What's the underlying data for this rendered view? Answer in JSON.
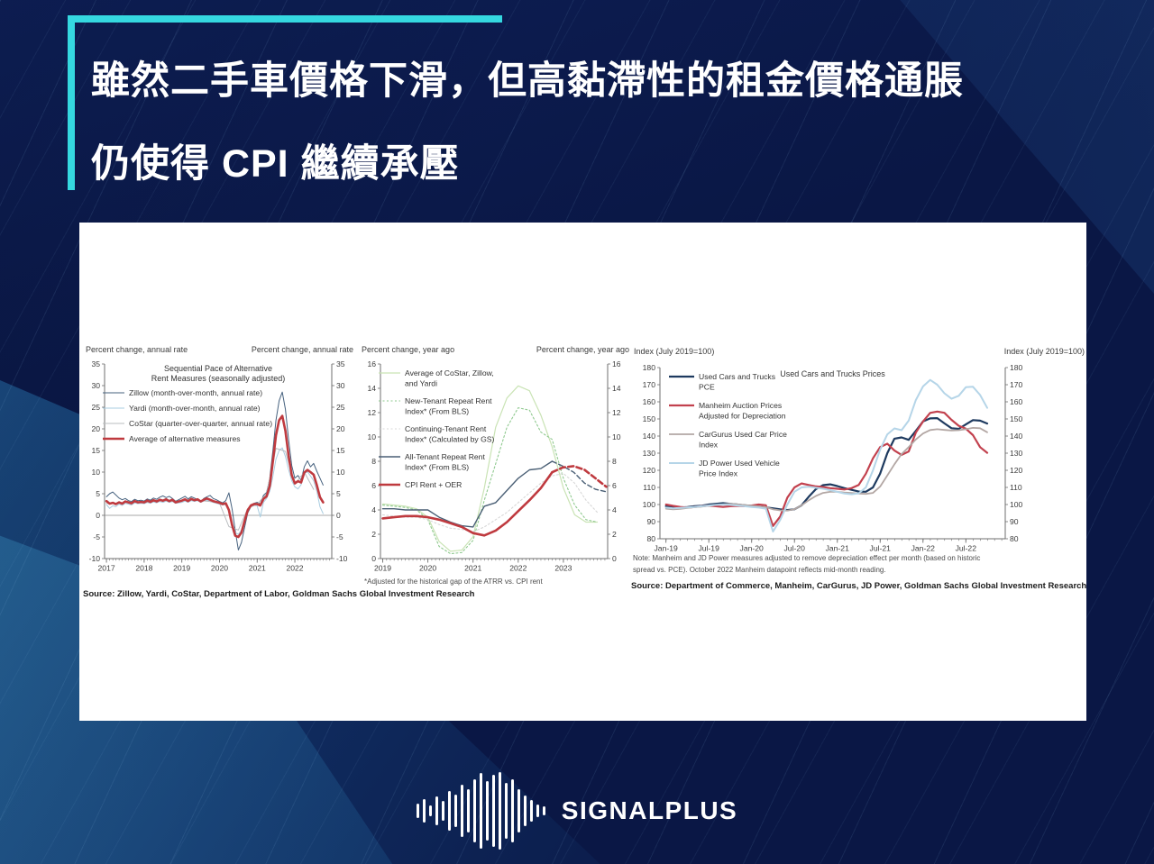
{
  "slide": {
    "title_line1": "雖然二手車價格下滑，但高黏滯性的租金價格通脹",
    "title_line2": "仍使得 CPI 繼續承壓",
    "accent_color": "#35d8e0",
    "background_color": "#0a1745"
  },
  "panel": {
    "left_source": "Source: Zillow, Yardi, CoStar, Department of Labor, Goldman Sachs Global Investment Research",
    "middle_footnote": "*Adjusted for the historical gap of the ATRR  vs.  CPI rent",
    "right_note_line1": "Note:  Manheim  and JD  Power measures  adjusted to remove  depreciation  effect per month (based on historic",
    "right_note_line2": "spread vs. PCE).  October 2022 Manheim  datapoint reflects mid-month reading.",
    "right_source": "Source: Department of Commerce, Manheim, CarGurus, JD Power, Goldman Sachs Global Investment Research"
  },
  "logo": {
    "brand": "SIGNALPLUS",
    "icon": "waveform-icon"
  },
  "chart_data": [
    {
      "type": "line",
      "title_lines": [
        "Sequential Pace of Alternative",
        "Rent Measures (seasonally adjusted)"
      ],
      "left_axis_label": "Percent change, annual rate",
      "right_axis_label": "Percent change, annual rate",
      "xlim": [
        2016.95,
        2022.98
      ],
      "ylim": [
        -10,
        35
      ],
      "yticks": [
        -10,
        -5,
        0,
        5,
        10,
        15,
        20,
        25,
        30,
        35
      ],
      "xticks": [
        {
          "v": 2017,
          "label": "2017"
        },
        {
          "v": 2018,
          "label": "2018"
        },
        {
          "v": 2019,
          "label": "2019"
        },
        {
          "v": 2020,
          "label": "2020"
        },
        {
          "v": 2021,
          "label": "2021"
        },
        {
          "v": 2022,
          "label": "2022"
        }
      ],
      "minor_step": 0.08333,
      "zero_line": true,
      "grid": false,
      "legend_position": "upper-left",
      "series": [
        {
          "name_lines": [
            "Zillow (month-over-month, annual rate)"
          ],
          "color": "#46617e",
          "width": 1,
          "dash": "",
          "x0": 2017.0,
          "dx": 0.08333,
          "values": [
            4.3,
            5.0,
            5.4,
            4.7,
            4.0,
            3.6,
            3.9,
            3.4,
            3.2,
            3.7,
            3.4,
            3.5,
            3.3,
            3.8,
            3.5,
            4.0,
            3.7,
            4.2,
            4.5,
            4.1,
            4.4,
            3.9,
            3.3,
            3.6,
            4.0,
            4.4,
            3.8,
            4.3,
            4.0,
            3.6,
            3.1,
            3.9,
            4.3,
            4.6,
            3.9,
            3.6,
            3.2,
            2.9,
            3.4,
            5.2,
            1.5,
            -3.5,
            -8.0,
            -6.3,
            -2.8,
            0.6,
            2.0,
            2.8,
            3.0,
            2.6,
            4.6,
            5.3,
            8.5,
            15.0,
            22.0,
            26.5,
            28.5,
            24.5,
            17.5,
            11.5,
            8.6,
            9.2,
            8.1,
            11.2,
            12.6,
            11.2,
            12.0,
            10.2,
            8.6,
            7.0
          ]
        },
        {
          "name_lines": [
            "Yardi (month-over-month, annual rate)"
          ],
          "color": "#a8cce0",
          "width": 1,
          "dash": "",
          "x0": 2017.0,
          "dx": 0.08333,
          "values": [
            2.5,
            1.6,
            2.2,
            2.0,
            2.6,
            2.3,
            2.8,
            2.6,
            2.4,
            2.9,
            2.7,
            2.8,
            2.7,
            3.0,
            2.8,
            3.1,
            2.9,
            3.2,
            3.0,
            3.3,
            3.0,
            3.2,
            2.8,
            2.9,
            3.0,
            3.3,
            3.0,
            3.4,
            3.2,
            3.4,
            3.0,
            3.3,
            3.5,
            3.2,
            3.0,
            2.8,
            2.6,
            2.4,
            2.5,
            1.0,
            -1.8,
            -4.0,
            -4.4,
            -3.4,
            -1.0,
            1.0,
            2.0,
            2.3,
            2.2,
            -0.4,
            3.0,
            3.9,
            5.6,
            9.0,
            13.0,
            15.0,
            15.6,
            13.6,
            10.6,
            8.0,
            6.6,
            6.1,
            7.1,
            9.6,
            10.1,
            9.1,
            8.0,
            5.6,
            2.0,
            0.4
          ]
        },
        {
          "name_lines": [
            "CoStar (quarter-over-quarter, annual rate)"
          ],
          "color": "#b9bcbf",
          "width": 1,
          "dash": "",
          "x0": 2017.0,
          "dx": 0.25,
          "values": [
            2.8,
            2.7,
            3.0,
            3.1,
            3.0,
            3.3,
            3.4,
            3.2,
            3.4,
            3.6,
            3.4,
            3.2,
            2.8,
            -2.6,
            -3.4,
            1.6,
            2.6,
            5.0,
            15.5,
            14.8,
            7.2,
            10.0,
            6.0
          ]
        },
        {
          "name_lines": [
            "Average of alternative measures"
          ],
          "color": "#bf3a3f",
          "width": 2.6,
          "dash": "",
          "x0": 2017.0,
          "dx": 0.08333,
          "values": [
            3.3,
            2.7,
            2.9,
            2.6,
            3.0,
            2.7,
            3.2,
            3.0,
            2.8,
            3.3,
            3.0,
            3.1,
            3.0,
            3.4,
            3.1,
            3.5,
            3.2,
            3.6,
            3.4,
            3.7,
            3.3,
            3.6,
            3.0,
            3.2,
            3.4,
            3.7,
            3.3,
            3.8,
            3.5,
            3.7,
            3.2,
            3.6,
            3.9,
            3.6,
            3.3,
            3.1,
            2.9,
            2.6,
            2.8,
            1.2,
            -2.2,
            -4.7,
            -5.0,
            -4.0,
            -1.3,
            1.2,
            2.3,
            2.6,
            2.6,
            2.3,
            3.8,
            4.4,
            6.8,
            12.5,
            18.5,
            22.0,
            23.0,
            19.5,
            13.8,
            9.3,
            7.4,
            7.9,
            7.6,
            9.9,
            10.5,
            10.0,
            9.4,
            7.0,
            4.2,
            3.0
          ]
        }
      ]
    },
    {
      "type": "line",
      "title_lines": [],
      "left_axis_label": "Percent change, year ago",
      "right_axis_label": "Percent change, year ago",
      "xlim": [
        2018.95,
        2023.98
      ],
      "ylim": [
        0,
        16
      ],
      "yticks": [
        0,
        2,
        4,
        6,
        8,
        10,
        12,
        14,
        16
      ],
      "xticks": [
        {
          "v": 2019,
          "label": "2019"
        },
        {
          "v": 2020,
          "label": "2020"
        },
        {
          "v": 2021,
          "label": "2021"
        },
        {
          "v": 2022,
          "label": "2022"
        },
        {
          "v": 2023,
          "label": "2023"
        }
      ],
      "minor_step": 0.08333,
      "zero_line": false,
      "grid": false,
      "legend_position": "upper-left",
      "series": [
        {
          "name_lines": [
            "Average of CoStar, Zillow,",
            "and Yardi"
          ],
          "color": "#c9e3b4",
          "width": 1.2,
          "dash": "",
          "x0": 2019.0,
          "dx": 0.25,
          "values": [
            4.5,
            4.4,
            4.3,
            4.1,
            3.4,
            1.4,
            0.6,
            0.7,
            1.8,
            5.8,
            10.8,
            13.2,
            14.2,
            13.8,
            11.8,
            9.2,
            5.8,
            3.6,
            3.0,
            3.0
          ]
        },
        {
          "name_lines": [
            "New-Tenant Repeat Rent",
            "Index* (From BLS)"
          ],
          "color": "#8fc98f",
          "width": 1.1,
          "dash": "2,2.5",
          "x0": 2019.0,
          "dx": 0.25,
          "values": [
            4.4,
            4.3,
            4.2,
            4.0,
            3.2,
            1.0,
            0.4,
            0.5,
            1.5,
            4.8,
            7.8,
            10.8,
            12.4,
            12.2,
            10.4,
            9.8,
            6.6,
            4.4,
            3.2,
            3.0
          ]
        },
        {
          "name_lines": [
            "Continuing-Tenant Rent",
            "Index* (Calculated by GS)"
          ],
          "color": "#d8d8d8",
          "width": 1.1,
          "dash": "2,2.5",
          "x0": 2019.0,
          "dx": 0.25,
          "values": [
            3.6,
            3.5,
            3.4,
            3.4,
            3.2,
            2.8,
            2.5,
            2.4,
            2.2,
            2.6,
            3.2,
            3.8,
            4.6,
            5.4,
            6.2,
            6.8,
            7.0,
            6.2,
            4.8,
            3.8
          ]
        },
        {
          "name_lines": [
            "All-Tenant Repeat Rent",
            "Index* (From BLS)"
          ],
          "color": "#4a5f75",
          "width": 1.4,
          "dash": "",
          "x0": 2019.0,
          "dx": 0.25,
          "values": [
            4.1,
            4.1,
            4.0,
            4.0,
            4.0,
            3.4,
            3.0,
            2.7,
            2.6,
            4.3,
            4.6,
            5.6,
            6.6,
            7.3,
            7.4,
            8.0
          ]
        },
        {
          "name_lines": [],
          "in_legend": false,
          "color": "#4a5f75",
          "width": 1.4,
          "dash": "5,3",
          "x0": 2022.75,
          "dx": 0.24,
          "values": [
            8.0,
            7.6,
            7.1,
            6.2,
            5.7,
            5.5
          ]
        },
        {
          "name_lines": [
            "CPI Rent + OER"
          ],
          "color": "#bf3a3f",
          "width": 2.6,
          "dash": "",
          "x0": 2019.0,
          "dx": 0.25,
          "values": [
            3.3,
            3.4,
            3.5,
            3.5,
            3.4,
            3.2,
            2.9,
            2.6,
            2.1,
            1.9,
            2.3,
            3.0,
            3.9,
            4.8,
            5.8,
            7.1
          ]
        },
        {
          "name_lines": [],
          "in_legend": false,
          "color": "#bf3a3f",
          "width": 2.6,
          "dash": "6,3.5",
          "x0": 2022.75,
          "dx": 0.24,
          "values": [
            7.1,
            7.5,
            7.6,
            7.3,
            6.6,
            5.9
          ]
        }
      ]
    },
    {
      "type": "line",
      "title_lines": [
        "Used Cars and Trucks Prices"
      ],
      "left_axis_label": "Index (July 2019=100)",
      "right_axis_label": "Index (July 2019=100)",
      "xlim": [
        2018.93,
        2022.96
      ],
      "ylim": [
        80,
        180
      ],
      "yticks": [
        80,
        90,
        100,
        110,
        120,
        130,
        140,
        150,
        160,
        170,
        180
      ],
      "xticks": [
        {
          "v": 2019.0,
          "label": "Jan-19"
        },
        {
          "v": 2019.5,
          "label": "Jul-19"
        },
        {
          "v": 2020.0,
          "label": "Jan-20"
        },
        {
          "v": 2020.5,
          "label": "Jul-20"
        },
        {
          "v": 2021.0,
          "label": "Jan-21"
        },
        {
          "v": 2021.5,
          "label": "Jul-21"
        },
        {
          "v": 2022.0,
          "label": "Jan-22"
        },
        {
          "v": 2022.5,
          "label": "Jul-22"
        }
      ],
      "minor_step": 0.08333,
      "zero_line": false,
      "grid": false,
      "legend_position": "upper-left",
      "series": [
        {
          "name_lines": [
            "Used Cars and Trucks",
            "PCE"
          ],
          "color": "#1e3a5f",
          "width": 2.2,
          "dash": "",
          "x0": 2019.0,
          "dx": 0.08333,
          "values": [
            99,
            98.6,
            98.2,
            98.5,
            99,
            99.3,
            100,
            100.4,
            100.8,
            100.4,
            100,
            99.6,
            99.2,
            98.8,
            98.3,
            97.8,
            97.2,
            96.8,
            97.2,
            99.5,
            104.5,
            109,
            111.3,
            111.8,
            110.8,
            109.6,
            108.6,
            107.6,
            107.5,
            110,
            118,
            130,
            138.5,
            139.2,
            137.8,
            143,
            148.5,
            150.3,
            150.5,
            147.4,
            144.6,
            144.2,
            146.8,
            149.3,
            149,
            147.3
          ]
        },
        {
          "name_lines": [
            "Manheim Auction Prices",
            "Adjusted for Depreciation"
          ],
          "color": "#c2414e",
          "width": 2.2,
          "dash": "",
          "x0": 2019.0,
          "dx": 0.08333,
          "values": [
            100,
            99.2,
            98.6,
            98.2,
            98.5,
            99,
            99.4,
            99,
            98.6,
            99,
            99.2,
            99,
            99.4,
            100,
            99.6,
            87.5,
            93,
            104,
            110,
            112.3,
            111.4,
            110.6,
            110.2,
            109.6,
            109.2,
            108.8,
            109.6,
            111.5,
            118,
            127,
            133.5,
            135.5,
            131.5,
            129,
            131,
            142,
            148.5,
            153.5,
            154.3,
            153.6,
            149.5,
            146,
            144.3,
            140.5,
            133.5,
            130.2
          ]
        },
        {
          "name_lines": [
            "CarGurus Used Car Price",
            "Index"
          ],
          "color": "#b3a7a4",
          "width": 1.8,
          "dash": "",
          "x0": 2019.0,
          "dx": 0.08333,
          "values": [
            97.6,
            97.2,
            97.5,
            98,
            98.4,
            98.8,
            99.3,
            99.8,
            100.1,
            100.4,
            100.1,
            99.7,
            99.3,
            98.9,
            98.4,
            97.2,
            96.6,
            96.5,
            97.2,
            99.5,
            102.5,
            105,
            106.8,
            107.4,
            107.4,
            107,
            106.8,
            106.4,
            106.2,
            106.8,
            110.5,
            117,
            123.5,
            129.5,
            133.5,
            138,
            141.5,
            143.5,
            144,
            143.6,
            143.2,
            143.4,
            144,
            144.8,
            144.6,
            142.2
          ]
        },
        {
          "name_lines": [
            "JD Power Used Vehicle",
            "Price Index"
          ],
          "color": "#b5d5e8",
          "width": 2,
          "dash": "",
          "x0": 2019.0,
          "dx": 0.08333,
          "values": [
            98.2,
            97.8,
            98,
            98.3,
            98.6,
            99,
            99.4,
            99.8,
            100,
            99.8,
            99.4,
            99,
            98.6,
            98.2,
            97.6,
            84.2,
            91,
            100,
            107.5,
            110,
            110.4,
            109.8,
            109.2,
            108.4,
            107.4,
            106.4,
            106,
            106.6,
            110,
            120,
            132,
            141,
            144.5,
            143.4,
            149,
            161,
            169,
            172.8,
            170,
            165,
            161.8,
            163.5,
            168.5,
            168.8,
            164,
            156.5
          ]
        }
      ]
    }
  ]
}
